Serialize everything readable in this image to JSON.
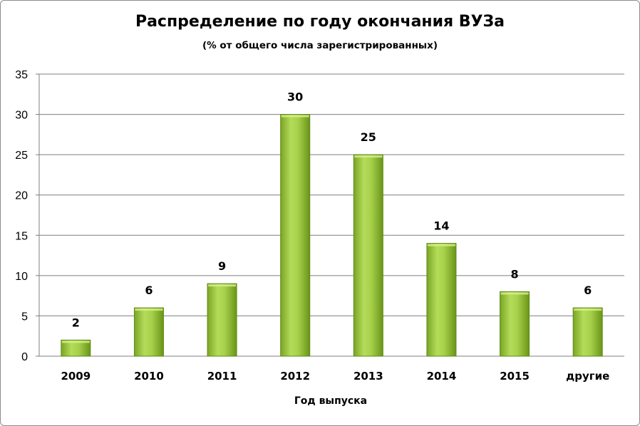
{
  "chart_data": {
    "type": "bar",
    "title": "Распределение по году окончания ВУЗа",
    "subtitle": "(% от общего числа зарегистрированных)",
    "xlabel": "Год выпуска",
    "ylabel": "",
    "categories": [
      "2009",
      "2010",
      "2011",
      "2012",
      "2013",
      "2014",
      "2015",
      "другие"
    ],
    "values": [
      2,
      6,
      9,
      30,
      25,
      14,
      8,
      6
    ],
    "data_labels": [
      "2",
      "6",
      "9",
      "30",
      "25",
      "14",
      "8",
      "6"
    ],
    "ylim": [
      0,
      35
    ],
    "yticks": [
      0,
      5,
      10,
      15,
      20,
      25,
      30,
      35
    ],
    "grid": true,
    "legend": "none",
    "colors": {
      "bar_light": "#c4e36a",
      "bar_mid": "#9ccc3c",
      "bar_dark": "#6e9a1c",
      "grid": "#7f7f7f"
    }
  }
}
